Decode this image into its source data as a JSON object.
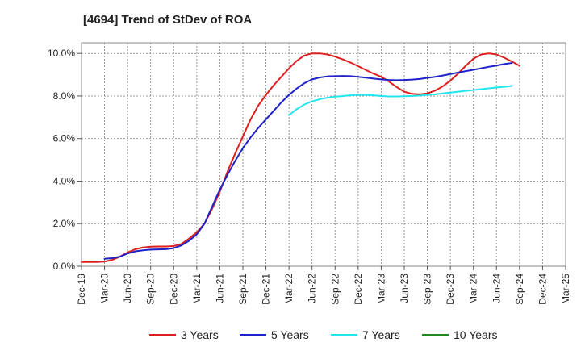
{
  "chart_data": {
    "type": "line",
    "title": "[4694]  Trend of StDev of ROA",
    "xlabel": "",
    "ylabel": "",
    "x_ticks": [
      "Dec-19",
      "Mar-20",
      "Jun-20",
      "Sep-20",
      "Dec-20",
      "Mar-21",
      "Jun-21",
      "Sep-21",
      "Dec-21",
      "Mar-22",
      "Jun-22",
      "Sep-22",
      "Dec-22",
      "Mar-23",
      "Jun-23",
      "Sep-23",
      "Dec-23",
      "Mar-24",
      "Jun-24",
      "Sep-24",
      "Dec-24",
      "Mar-25"
    ],
    "y_ticks": [
      "0.0%",
      "2.0%",
      "4.0%",
      "6.0%",
      "8.0%",
      "10.0%"
    ],
    "ylim": [
      0,
      10.5
    ],
    "grid": true,
    "legend": "bottom",
    "series": [
      {
        "name": "3 Years",
        "color": "#dd1f1f",
        "start_index": 0,
        "values": [
          0.2,
          0.2,
          0.2,
          0.22,
          0.3,
          0.45,
          0.65,
          0.8,
          0.88,
          0.92,
          0.93,
          0.93,
          0.95,
          1.05,
          1.3,
          1.6,
          2.0,
          2.7,
          3.5,
          4.45,
          5.3,
          6.1,
          6.9,
          7.55,
          8.05,
          8.5,
          8.9,
          9.3,
          9.65,
          9.9,
          10.0,
          10.0,
          9.95,
          9.85,
          9.72,
          9.57,
          9.4,
          9.22,
          9.05,
          8.9,
          8.68,
          8.42,
          8.2,
          8.1,
          8.08,
          8.12,
          8.25,
          8.45,
          8.72,
          9.05,
          9.42,
          9.75,
          9.95,
          10.0,
          9.95,
          9.8,
          9.62,
          9.42
        ]
      },
      {
        "name": "5 Years",
        "color": "#1f22c8",
        "start_index": 3,
        "values": [
          0.35,
          0.38,
          0.45,
          0.6,
          0.7,
          0.75,
          0.78,
          0.79,
          0.8,
          0.85,
          0.98,
          1.2,
          1.5,
          2.0,
          2.8,
          3.6,
          4.3,
          4.95,
          5.55,
          6.05,
          6.5,
          6.9,
          7.3,
          7.7,
          8.05,
          8.35,
          8.6,
          8.78,
          8.87,
          8.92,
          8.93,
          8.94,
          8.93,
          8.9,
          8.86,
          8.82,
          8.78,
          8.75,
          8.74,
          8.75,
          8.77,
          8.8,
          8.85,
          8.9,
          8.96,
          9.03,
          9.1,
          9.17,
          9.23,
          9.3,
          9.37,
          9.43,
          9.5,
          9.55
        ]
      },
      {
        "name": "7 Years",
        "color": "#22e5ee",
        "start_index": 27,
        "values": [
          7.1,
          7.38,
          7.6,
          7.75,
          7.85,
          7.92,
          7.97,
          8.0,
          8.03,
          8.05,
          8.05,
          8.03,
          8.0,
          7.98,
          7.98,
          7.99,
          8.0,
          8.02,
          8.05,
          8.08,
          8.12,
          8.16,
          8.2,
          8.24,
          8.28,
          8.32,
          8.36,
          8.4,
          8.43,
          8.47
        ]
      },
      {
        "name": "10 Years",
        "color": "#1e8a1e",
        "start_index": 0,
        "values": []
      }
    ]
  }
}
